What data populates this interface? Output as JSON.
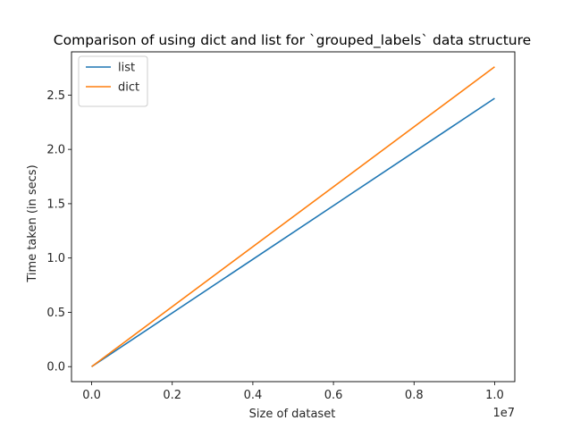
{
  "chart_data": {
    "type": "line",
    "title": "Comparison of using dict and list for `grouped_labels` data structure",
    "xlabel": "Size of dataset",
    "ylabel": "Time taken (in secs)",
    "x_offset_label": "1e7",
    "x": [
      0,
      10000000
    ],
    "xlim": [
      -500000,
      10500000
    ],
    "ylim": [
      -0.138,
      2.898
    ],
    "x_ticks": [
      {
        "value": 0,
        "label": "0.0"
      },
      {
        "value": 2000000,
        "label": "0.2"
      },
      {
        "value": 4000000,
        "label": "0.4"
      },
      {
        "value": 6000000,
        "label": "0.6"
      },
      {
        "value": 8000000,
        "label": "0.8"
      },
      {
        "value": 10000000,
        "label": "1.0"
      }
    ],
    "y_ticks": [
      {
        "value": 0.0,
        "label": "0.0"
      },
      {
        "value": 0.5,
        "label": "0.5"
      },
      {
        "value": 1.0,
        "label": "1.0"
      },
      {
        "value": 1.5,
        "label": "1.5"
      },
      {
        "value": 2.0,
        "label": "2.0"
      },
      {
        "value": 2.5,
        "label": "2.5"
      }
    ],
    "series": [
      {
        "name": "list",
        "color": "#1f77b4",
        "values": [
          0.0,
          2.47
        ]
      },
      {
        "name": "dict",
        "color": "#ff7f0e",
        "values": [
          0.0,
          2.76
        ]
      }
    ],
    "legend_position": "upper-left",
    "grid": false
  }
}
